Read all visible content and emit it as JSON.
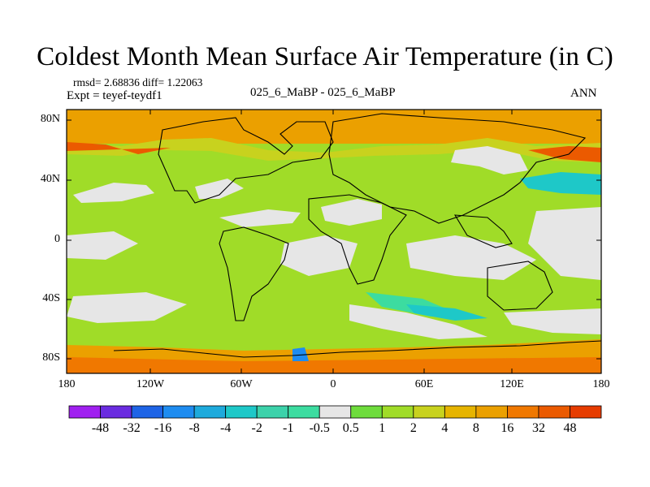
{
  "title": "Coldest Month Mean Surface Air Temperature (in C)",
  "stats_line": "rmsd= 2.68836  diff= 1.22063",
  "experiment_line": "Expt = teyef-teydf1",
  "comparison_label": "025_6_MaBP - 025_6_MaBP",
  "season_label": "ANN",
  "map": {
    "lat_labels": [
      "80N",
      "40N",
      "0",
      "40S",
      "80S"
    ],
    "lon_labels": [
      "180",
      "120W",
      "60W",
      "0",
      "60E",
      "120E",
      "180"
    ]
  },
  "colorbar": {
    "labels": [
      "-48",
      "-32",
      "-16",
      "-8",
      "-4",
      "-2",
      "-1",
      "-0.5",
      "0.5",
      "1",
      "2",
      "4",
      "8",
      "16",
      "32",
      "48"
    ],
    "colors": [
      "#a020f0",
      "#6a2ce0",
      "#1e64e6",
      "#1e8cf0",
      "#1eaadc",
      "#1ec8c8",
      "#3cd2aa",
      "#3cdca0",
      "#e6e6e6",
      "#6edc3c",
      "#a0dc28",
      "#c8d21e",
      "#e6b400",
      "#eba000",
      "#f07800",
      "#eb5a00",
      "#e63c00"
    ]
  },
  "palette": {
    "neutral": "#e6e6e6",
    "warm_low": "#6edc3c",
    "warm_mid": "#a0dc28",
    "warm_hi": "#c8d21e",
    "orange": "#eba000",
    "cool_low": "#3cdca0",
    "cool_mid": "#1ec8c8",
    "cool_hi": "#1eaadc"
  }
}
